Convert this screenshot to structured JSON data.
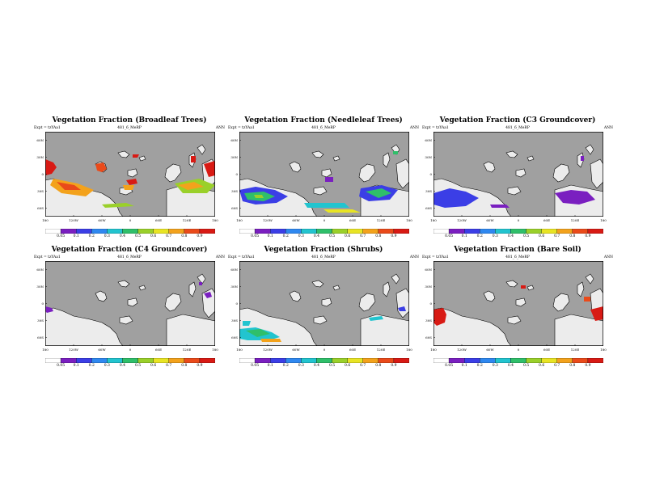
{
  "experiment": "Expt = tzYAa1",
  "case": "481_6_MeRP",
  "season": "ANN",
  "lat_labels": [
    "60N",
    "30N",
    "0",
    "30S",
    "60S"
  ],
  "lon_labels": [
    "180",
    "120W",
    "60W",
    "0",
    "60E",
    "120E",
    "180"
  ],
  "colorbar": {
    "levels": [
      "0.05",
      "0.1",
      "0.2",
      "0.3",
      "0.4",
      "0.5",
      "0.6",
      "0.7",
      "0.8",
      "0.9"
    ],
    "colors": [
      "#ffffff",
      "#7a1fc0",
      "#3b3ee6",
      "#2f88f0",
      "#22c4cf",
      "#2fbf6a",
      "#9ad02a",
      "#e8e424",
      "#f3a21c",
      "#ea4a1a",
      "#d81a14"
    ]
  },
  "colors": {
    "ocean": "#a0a0a0",
    "land_low": "#ececec"
  },
  "panels": [
    {
      "title": "Vegetation Fraction (Broadleaf Trees)",
      "region_class": "broadleaf"
    },
    {
      "title": "Vegetation Fraction (Needleleaf Trees)",
      "region_class": "needleleaf"
    },
    {
      "title": "Vegetation Fraction (C3 Groundcover)",
      "region_class": "c3"
    },
    {
      "title": "Vegetation Fraction (C4 Groundcover)",
      "region_class": "c4"
    },
    {
      "title": "Vegetation Fraction (Shrubs)",
      "region_class": "shrubs"
    },
    {
      "title": "Vegetation Fraction (Bare Soil)",
      "region_class": "bare"
    }
  ]
}
